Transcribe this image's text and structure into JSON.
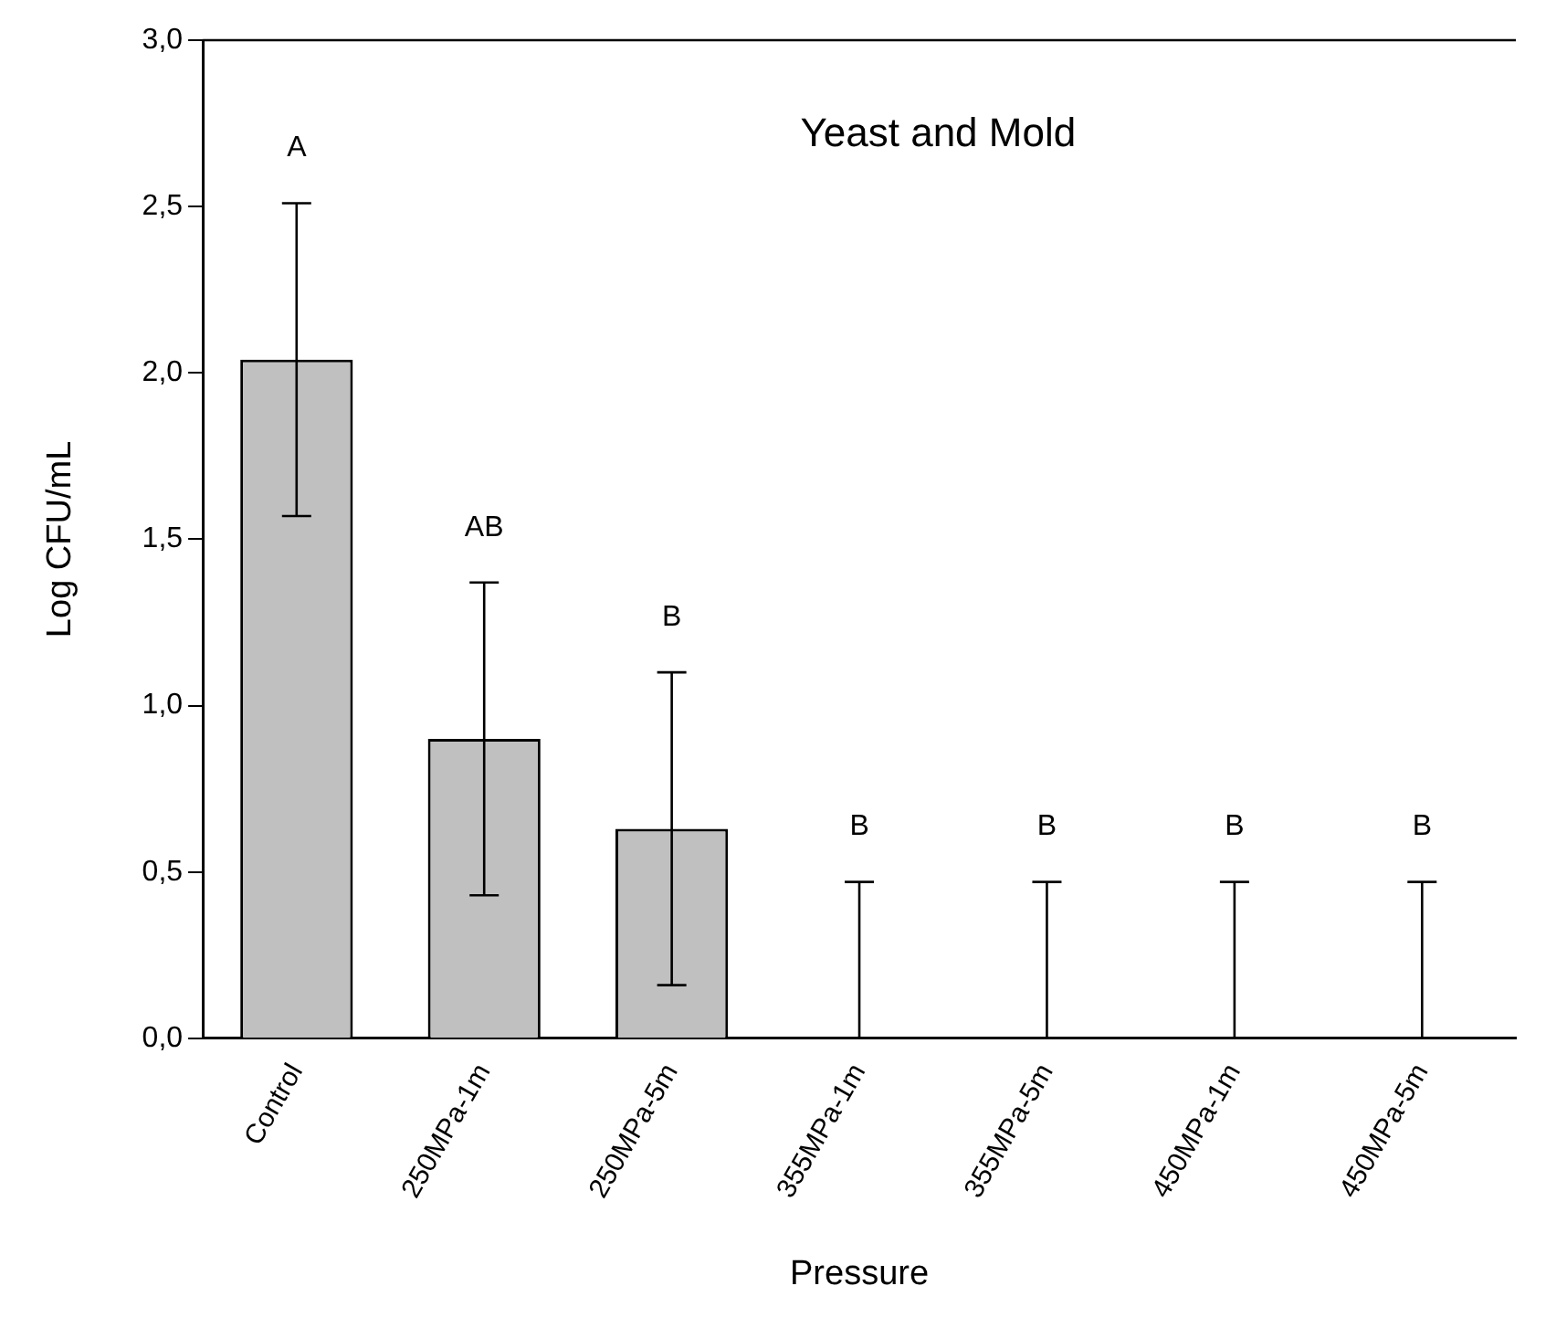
{
  "chart_data": {
    "type": "bar",
    "title": "Yeast and Mold",
    "xlabel": "Pressure",
    "ylabel": "Log CFU/mL",
    "categories": [
      "Control",
      "250MPa-1m",
      "250MPa-5m",
      "355MPa-1m",
      "355MPa-5m",
      "450MPa-1m",
      "450MPa-5m"
    ],
    "values": [
      2.04,
      0.9,
      0.63,
      0,
      0,
      0,
      0
    ],
    "errors": [
      0.47,
      0.47,
      0.47,
      [
        0,
        0.47
      ],
      [
        0,
        0.47
      ],
      [
        0,
        0.47
      ],
      [
        0,
        0.47
      ]
    ],
    "color": "#c0c0c0",
    "ylim": [
      0,
      3.0
    ],
    "yticks": [
      {
        "value": 0,
        "label": "0,0"
      },
      {
        "value": 0.5,
        "label": "0,5"
      },
      {
        "value": 1.0,
        "label": "1,0"
      },
      {
        "value": 1.5,
        "label": "1,5"
      },
      {
        "value": 2.0,
        "label": "2,0"
      },
      {
        "value": 2.5,
        "label": "2,5"
      },
      {
        "value": 3.0,
        "label": "3,0"
      }
    ],
    "grid": false,
    "legend": false,
    "annotations": [
      "A",
      "AB",
      "B",
      "B",
      "B",
      "B",
      "B"
    ]
  }
}
